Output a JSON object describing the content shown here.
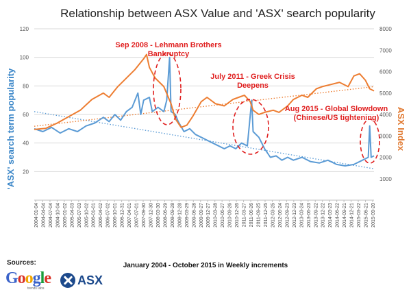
{
  "chart_data": {
    "type": "line",
    "title": "Relationship between ASX Value and 'ASX' search popularity",
    "xlabel": "January 2004 - October 2015 in Weekly increments",
    "ylabel_left": "'ASX' search term popularity",
    "ylabel_right": "ASX Index",
    "ylim_left": [
      0,
      120
    ],
    "yticks_left": [
      "20",
      "40",
      "60",
      "80",
      "100",
      "120"
    ],
    "ylim_right": [
      0,
      8000
    ],
    "yticks_right": [
      "1000",
      "2000",
      "3000",
      "4000",
      "5000",
      "6000",
      "7000",
      "8000"
    ],
    "grid": true,
    "x_tick_labels": [
      "2004-01-04",
      "2004-04-04",
      "2004-07-04",
      "2004-10-04",
      "2005-01-02",
      "2005-04-03",
      "2005-07-03",
      "2005-10-02",
      "2006-01-01",
      "2006-04-02",
      "2006-07-02",
      "2006-10-01",
      "2006-12-31",
      "2007-04-01",
      "2007-07-01",
      "2007-09-30",
      "2007-12-30",
      "2008-03-30",
      "2008-06-29",
      "2008-09-28",
      "2008-12-28",
      "2009-03-29",
      "2009-06-28",
      "2009-09-27",
      "2009-12-27",
      "2010-03-28",
      "2010-06-27",
      "2010-09-26",
      "2010-12-26",
      "2011-03-27",
      "2011-06-26",
      "2011-09-25",
      "2011-12-25",
      "2012-03-25",
      "2012-06-24",
      "2012-09-23",
      "2012-12-23",
      "2013-03-24",
      "2013-06-23",
      "2013-09-22",
      "2013-12-22",
      "2014-03-23",
      "2014-06-22",
      "2014-09-21",
      "2014-12-21",
      "2015-03-22",
      "2015-06-21",
      "2015-09-20"
    ],
    "x_years": [
      2004.0,
      2015.8
    ],
    "series": [
      {
        "name": "'ASX' search term popularity",
        "axis": "left",
        "color": "#5b9bd5",
        "trend_start": 62,
        "trend_end": 22,
        "points": [
          [
            2004.0,
            50
          ],
          [
            2004.3,
            48
          ],
          [
            2004.6,
            51
          ],
          [
            2004.9,
            47
          ],
          [
            2005.2,
            50
          ],
          [
            2005.5,
            48
          ],
          [
            2005.8,
            52
          ],
          [
            2006.1,
            54
          ],
          [
            2006.4,
            58
          ],
          [
            2006.6,
            55
          ],
          [
            2006.8,
            60
          ],
          [
            2007.0,
            56
          ],
          [
            2007.2,
            62
          ],
          [
            2007.4,
            65
          ],
          [
            2007.6,
            75
          ],
          [
            2007.7,
            60
          ],
          [
            2007.8,
            70
          ],
          [
            2008.0,
            72
          ],
          [
            2008.1,
            62
          ],
          [
            2008.3,
            65
          ],
          [
            2008.5,
            62
          ],
          [
            2008.6,
            70
          ],
          [
            2008.7,
            100
          ],
          [
            2008.75,
            62
          ],
          [
            2008.9,
            60
          ],
          [
            2009.0,
            55
          ],
          [
            2009.2,
            48
          ],
          [
            2009.4,
            50
          ],
          [
            2009.6,
            46
          ],
          [
            2009.8,
            44
          ],
          [
            2010.0,
            42
          ],
          [
            2010.2,
            40
          ],
          [
            2010.4,
            38
          ],
          [
            2010.6,
            36
          ],
          [
            2010.8,
            38
          ],
          [
            2011.0,
            36
          ],
          [
            2011.2,
            40
          ],
          [
            2011.4,
            38
          ],
          [
            2011.55,
            70
          ],
          [
            2011.6,
            48
          ],
          [
            2011.8,
            44
          ],
          [
            2012.0,
            36
          ],
          [
            2012.2,
            30
          ],
          [
            2012.4,
            31
          ],
          [
            2012.6,
            28
          ],
          [
            2012.8,
            30
          ],
          [
            2013.0,
            28
          ],
          [
            2013.3,
            30
          ],
          [
            2013.6,
            27
          ],
          [
            2013.9,
            26
          ],
          [
            2014.2,
            28
          ],
          [
            2014.5,
            25
          ],
          [
            2014.8,
            24
          ],
          [
            2015.1,
            25
          ],
          [
            2015.4,
            28
          ],
          [
            2015.6,
            30
          ],
          [
            2015.65,
            52
          ],
          [
            2015.7,
            30
          ],
          [
            2015.8,
            31
          ]
        ]
      },
      {
        "name": "ASX Index",
        "axis": "right",
        "color": "#ed7d31",
        "trend_start": 3450,
        "trend_end": 5300,
        "points": [
          [
            2004.0,
            3300
          ],
          [
            2004.4,
            3350
          ],
          [
            2004.8,
            3600
          ],
          [
            2005.2,
            3900
          ],
          [
            2005.6,
            4200
          ],
          [
            2006.0,
            4700
          ],
          [
            2006.4,
            5000
          ],
          [
            2006.6,
            4800
          ],
          [
            2006.9,
            5300
          ],
          [
            2007.2,
            5700
          ],
          [
            2007.5,
            6100
          ],
          [
            2007.8,
            6600
          ],
          [
            2007.9,
            6800
          ],
          [
            2008.0,
            6200
          ],
          [
            2008.2,
            5700
          ],
          [
            2008.5,
            5300
          ],
          [
            2008.75,
            4500
          ],
          [
            2008.9,
            3800
          ],
          [
            2009.1,
            3400
          ],
          [
            2009.3,
            3500
          ],
          [
            2009.5,
            3900
          ],
          [
            2009.8,
            4600
          ],
          [
            2010.0,
            4800
          ],
          [
            2010.3,
            4500
          ],
          [
            2010.6,
            4400
          ],
          [
            2010.9,
            4700
          ],
          [
            2011.1,
            4800
          ],
          [
            2011.3,
            4900
          ],
          [
            2011.5,
            4600
          ],
          [
            2011.6,
            4200
          ],
          [
            2011.8,
            4000
          ],
          [
            2012.0,
            4100
          ],
          [
            2012.3,
            4200
          ],
          [
            2012.5,
            4100
          ],
          [
            2012.8,
            4400
          ],
          [
            2013.0,
            4700
          ],
          [
            2013.3,
            4900
          ],
          [
            2013.5,
            4800
          ],
          [
            2013.8,
            5200
          ],
          [
            2014.0,
            5300
          ],
          [
            2014.3,
            5400
          ],
          [
            2014.6,
            5500
          ],
          [
            2014.9,
            5300
          ],
          [
            2015.1,
            5800
          ],
          [
            2015.3,
            5900
          ],
          [
            2015.5,
            5600
          ],
          [
            2015.65,
            5200
          ],
          [
            2015.8,
            5100
          ]
        ]
      }
    ],
    "annotations": [
      {
        "text_lines": [
          "Sep 2008 - Lehmann Brothers",
          "Bankruptcy"
        ],
        "color": "#e02020"
      },
      {
        "text_lines": [
          "July 2011 - Greek Crisis",
          "Deepens"
        ],
        "color": "#e02020"
      },
      {
        "text_lines": [
          "Aug 2015 - Global Slowdown",
          "(Chinese/US tightening)"
        ],
        "color": "#e02020"
      }
    ]
  },
  "sources": {
    "label": "Sources:",
    "google_letters": [
      "G",
      "o",
      "o",
      "g",
      "l",
      "e"
    ],
    "google_colors": [
      "#3a62c9",
      "#d93025",
      "#f2a600",
      "#3a62c9",
      "#1a9c3a",
      "#d93025"
    ],
    "google_sub": "trends labs",
    "asx_text": "ASX",
    "asx_color": "#1d4a8c"
  }
}
